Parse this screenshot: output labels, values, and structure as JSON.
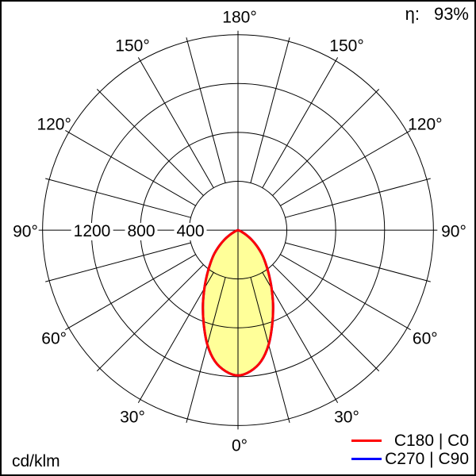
{
  "page": {
    "units_label": "cd/klm"
  },
  "chart_data": {
    "type": "line",
    "projection": "polar",
    "title": "",
    "units": "cd/klm",
    "efficiency": {
      "label": "η:",
      "value": "93%"
    },
    "grid": true,
    "grid_angle_step_deg": 15,
    "angle_label_step_deg": 30,
    "radial_max": 1600,
    "angle_tick_labels": [
      {
        "deg": 0,
        "label": "0°"
      },
      {
        "deg": 30,
        "label": "30°"
      },
      {
        "deg": 60,
        "label": "60°"
      },
      {
        "deg": 90,
        "label": "90°"
      },
      {
        "deg": 120,
        "label": "120°"
      },
      {
        "deg": 150,
        "label": "150°"
      },
      {
        "deg": 180,
        "label": "180°"
      }
    ],
    "radial_tick_labels": [
      {
        "value": 400,
        "label": "400"
      },
      {
        "value": 800,
        "label": "800"
      },
      {
        "value": 1200,
        "label": "1200"
      }
    ],
    "legend_position": "bottom-right",
    "series": [
      {
        "name": "C180 | C0",
        "color": "#ff0000",
        "fill_color": "#ffff99",
        "gamma_deg": [
          0,
          5,
          10,
          15,
          20,
          25,
          30,
          35,
          40,
          45,
          50,
          55,
          60,
          65,
          70,
          75,
          80,
          85,
          90
        ],
        "values": [
          1190,
          1160,
          1090,
          970,
          820,
          680,
          550,
          440,
          350,
          275,
          200,
          135,
          75,
          35,
          10,
          0,
          0,
          0,
          0
        ]
      },
      {
        "name": "C270 | C90",
        "color": "#0000ff",
        "fill_color": "#ffff99",
        "gamma_deg": [
          0,
          5,
          10,
          15,
          20,
          25,
          30,
          35,
          40,
          45,
          50,
          55,
          60,
          65,
          70,
          75,
          80,
          85,
          90
        ],
        "values": [
          1190,
          1160,
          1090,
          970,
          820,
          680,
          550,
          440,
          350,
          275,
          200,
          135,
          75,
          35,
          10,
          0,
          0,
          0,
          0
        ]
      }
    ]
  }
}
